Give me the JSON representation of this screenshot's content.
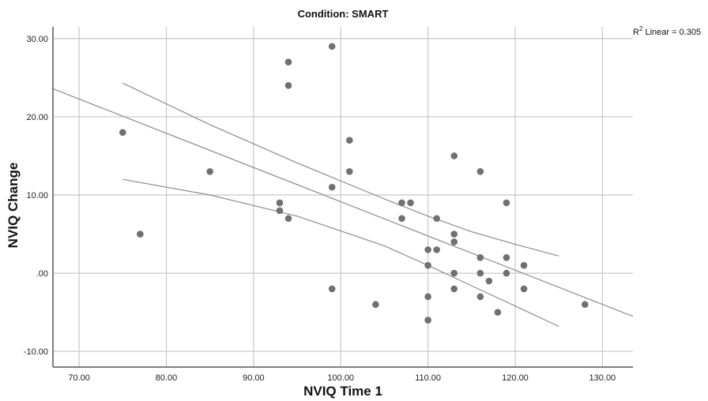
{
  "chart_data": {
    "type": "scatter",
    "title": "Condition: SMART",
    "xlabel": "NVIQ Time 1",
    "ylabel": "NVIQ Change",
    "xlim": [
      67,
      133.5
    ],
    "ylim": [
      -12,
      31.5
    ],
    "xticks": [
      70,
      80,
      90,
      100,
      110,
      120,
      130
    ],
    "xtick_labels": [
      "70.00",
      "80.00",
      "90.00",
      "100.00",
      "110.00",
      "120.00",
      "130.00"
    ],
    "yticks": [
      -10,
      0,
      10,
      20,
      30
    ],
    "ytick_labels": [
      "-10.00",
      ".00",
      "10.00",
      "20.00",
      "30.00"
    ],
    "grid": true,
    "annotation": {
      "prefix": "R",
      "superscript": "2",
      "text": " Linear = 0.305"
    },
    "colors": {
      "points": "#707070",
      "lines": "#8c8c8c",
      "grid": "#c8c8c8",
      "frame": "#555555"
    },
    "points": [
      {
        "x": 75,
        "y": 18
      },
      {
        "x": 77,
        "y": 5
      },
      {
        "x": 85,
        "y": 13
      },
      {
        "x": 93,
        "y": 9
      },
      {
        "x": 93,
        "y": 8
      },
      {
        "x": 94,
        "y": 27
      },
      {
        "x": 94,
        "y": 24
      },
      {
        "x": 94,
        "y": 7
      },
      {
        "x": 99,
        "y": 29
      },
      {
        "x": 99,
        "y": 11
      },
      {
        "x": 99,
        "y": -2
      },
      {
        "x": 101,
        "y": 17
      },
      {
        "x": 101,
        "y": 13
      },
      {
        "x": 104,
        "y": -4
      },
      {
        "x": 107,
        "y": 9
      },
      {
        "x": 107,
        "y": 7
      },
      {
        "x": 108,
        "y": 9
      },
      {
        "x": 110,
        "y": 3
      },
      {
        "x": 110,
        "y": 1
      },
      {
        "x": 110,
        "y": -3
      },
      {
        "x": 110,
        "y": -6
      },
      {
        "x": 111,
        "y": 7
      },
      {
        "x": 111,
        "y": 3
      },
      {
        "x": 113,
        "y": 15
      },
      {
        "x": 113,
        "y": 5
      },
      {
        "x": 113,
        "y": 4
      },
      {
        "x": 113,
        "y": 0
      },
      {
        "x": 113,
        "y": -2
      },
      {
        "x": 116,
        "y": 13
      },
      {
        "x": 116,
        "y": 2
      },
      {
        "x": 116,
        "y": 0
      },
      {
        "x": 116,
        "y": -3
      },
      {
        "x": 117,
        "y": -1
      },
      {
        "x": 118,
        "y": -5
      },
      {
        "x": 119,
        "y": 9
      },
      {
        "x": 119,
        "y": 2
      },
      {
        "x": 119,
        "y": 0
      },
      {
        "x": 121,
        "y": 1
      },
      {
        "x": 121,
        "y": -2
      },
      {
        "x": 128,
        "y": -4
      }
    ],
    "fit_line": {
      "intercept": 52.9,
      "slope": -0.4376
    },
    "ci_upper": [
      {
        "x": 75,
        "y": 24.3
      },
      {
        "x": 85,
        "y": 19.0
      },
      {
        "x": 95,
        "y": 14.1
      },
      {
        "x": 105,
        "y": 9.5
      },
      {
        "x": 110,
        "y": 7.3
      },
      {
        "x": 115,
        "y": 5.3
      },
      {
        "x": 120,
        "y": 3.7
      },
      {
        "x": 125,
        "y": 2.2
      }
    ],
    "ci_lower": [
      {
        "x": 75,
        "y": 12.0
      },
      {
        "x": 85,
        "y": 10.0
      },
      {
        "x": 95,
        "y": 7.3
      },
      {
        "x": 105,
        "y": 3.5
      },
      {
        "x": 110,
        "y": 1.0
      },
      {
        "x": 115,
        "y": -1.6
      },
      {
        "x": 120,
        "y": -4.2
      },
      {
        "x": 125,
        "y": -6.8
      }
    ]
  }
}
